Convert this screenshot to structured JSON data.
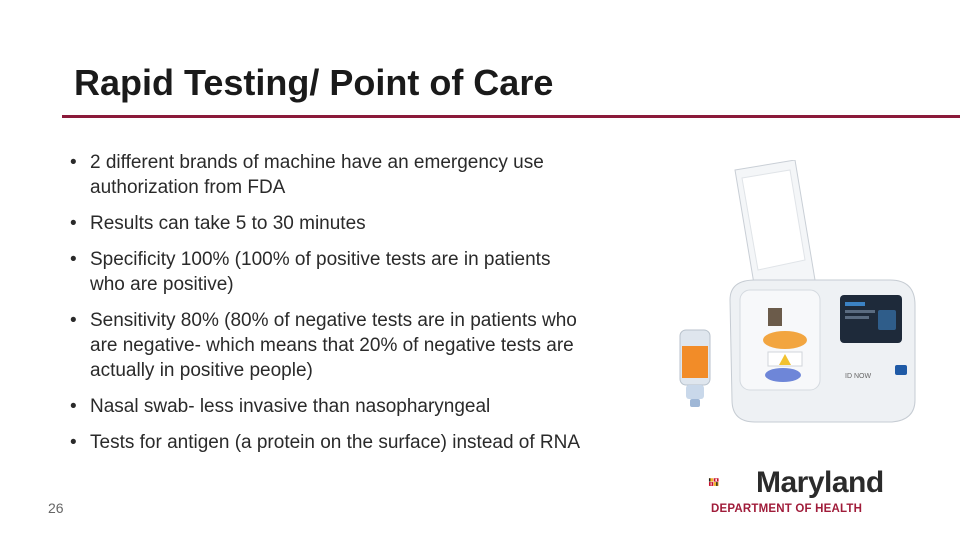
{
  "slide": {
    "title": "Rapid Testing/ Point of Care",
    "page_number": "26",
    "bullets": [
      "2 different brands of machine have an emergency use authorization from FDA",
      "Results can take 5 to 30 minutes",
      "Specificity 100% (100% of positive tests are in patients who are positive)",
      "Sensitivity 80% (80% of negative tests are in patients who are negative- which means that 20% of negative tests are actually in positive people)",
      "Nasal swab- less invasive than nasopharyngeal",
      "Tests for antigen (a protein on the surface) instead of RNA"
    ]
  },
  "device_image": {
    "icon": "rapid-test-machine-image",
    "label": "ID NOW"
  },
  "logo": {
    "name": "Maryland",
    "subtitle": "DEPARTMENT OF HEALTH",
    "colors": {
      "red": "#c8102e",
      "gold": "#f2b22a",
      "black": "#222222",
      "maroon": "#a01c3a"
    }
  },
  "colors": {
    "rule": "#8b1a3a"
  }
}
